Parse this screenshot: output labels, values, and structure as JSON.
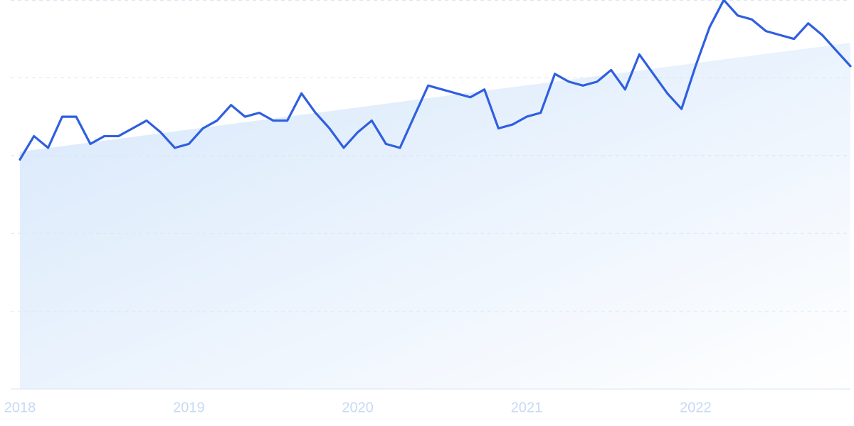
{
  "chart_data": {
    "type": "line",
    "x": [
      2018,
      2018.083,
      2018.167,
      2018.25,
      2018.333,
      2018.417,
      2018.5,
      2018.583,
      2018.667,
      2018.75,
      2018.833,
      2018.917,
      2019,
      2019.083,
      2019.167,
      2019.25,
      2019.333,
      2019.417,
      2019.5,
      2019.583,
      2019.667,
      2019.75,
      2019.833,
      2019.917,
      2020,
      2020.083,
      2020.167,
      2020.25,
      2020.333,
      2020.417,
      2020.5,
      2020.583,
      2020.667,
      2020.75,
      2020.833,
      2020.917,
      2021,
      2021.083,
      2021.167,
      2021.25,
      2021.333,
      2021.417,
      2021.5,
      2021.583,
      2021.667,
      2021.75,
      2021.833,
      2021.917,
      2022,
      2022.083,
      2022.167,
      2022.25,
      2022.333,
      2022.417,
      2022.5,
      2022.583,
      2022.667,
      2022.75,
      2022.833,
      2022.917
    ],
    "series": [
      {
        "color": "#2f5fe0",
        "values": [
          59,
          65,
          62,
          70,
          70,
          63,
          65,
          65,
          67,
          69,
          66,
          62,
          63,
          67,
          69,
          73,
          70,
          71,
          69,
          69,
          76,
          71,
          67,
          62,
          66,
          69,
          63,
          62,
          70,
          78,
          77,
          76,
          75,
          77,
          67,
          68,
          70,
          71,
          81,
          79,
          78,
          79,
          82,
          77,
          86,
          81,
          76,
          72,
          83,
          93,
          100,
          96,
          95,
          92,
          91,
          90,
          94,
          91,
          87,
          83
        ]
      }
    ],
    "trend": {
      "color": "#d6e7fb",
      "values": [
        61,
        89
      ]
    },
    "xlim": [
      2018,
      2022.917
    ],
    "xticks": [
      2018,
      2019,
      2020,
      2021,
      2022
    ],
    "ylim": [
      0,
      100
    ],
    "yticks": [
      0,
      20,
      40,
      60,
      80,
      100
    ],
    "show_ytick_labels": false,
    "grid": true
  }
}
